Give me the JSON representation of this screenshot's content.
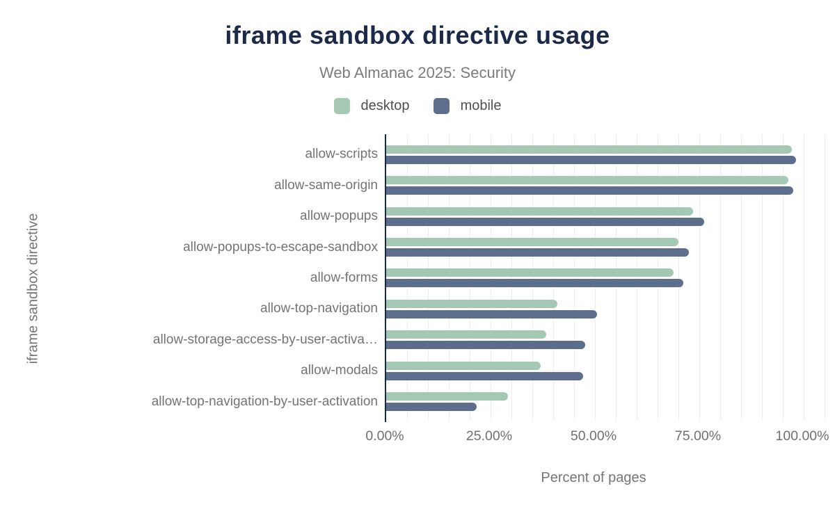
{
  "title": "iframe sandbox directive usage",
  "subtitle": "Web Almanac 2025: Security",
  "chart_data": {
    "type": "bar",
    "orientation": "horizontal",
    "title": "iframe sandbox directive usage",
    "subtitle": "Web Almanac 2025: Security",
    "xlabel": "Percent of pages",
    "ylabel": "iframe sandbox directive",
    "xlim": [
      0,
      105
    ],
    "x_tick_labels": [
      "0.00%",
      "25.00%",
      "50.00%",
      "75.00%",
      "100.00%"
    ],
    "x_tick_values": [
      0,
      25,
      50,
      75,
      100
    ],
    "grid": {
      "step_percent": 5,
      "color": "#ededed"
    },
    "legend_position": "top",
    "categories": [
      "allow-scripts",
      "allow-same-origin",
      "allow-popups",
      "allow-popups-to-escape-sandbox",
      "allow-forms",
      "allow-top-navigation",
      "allow-storage-access-by-user-activa…",
      "allow-modals",
      "allow-top-navigation-by-user-activation"
    ],
    "series": [
      {
        "name": "desktop",
        "color": "#a5c8b4",
        "values": [
          97.2,
          96.3,
          73.5,
          70.0,
          68.9,
          41.0,
          38.4,
          37.0,
          29.2
        ]
      },
      {
        "name": "mobile",
        "color": "#5d6e8c",
        "values": [
          98.2,
          97.5,
          76.2,
          72.5,
          71.2,
          50.5,
          47.7,
          47.1,
          21.6
        ]
      }
    ]
  },
  "colors": {
    "title": "#1b2a49",
    "subtitle": "#7b7b7b",
    "category_label": "#737373",
    "tick_label": "#6f6f6f",
    "axis_title": "#757575",
    "legend_label": "#4f4f4f",
    "axis_line": "#16294c",
    "gridline": "#ededed",
    "desktop": "#a5c8b4",
    "mobile": "#5d6e8c",
    "background": "#ffffff"
  }
}
